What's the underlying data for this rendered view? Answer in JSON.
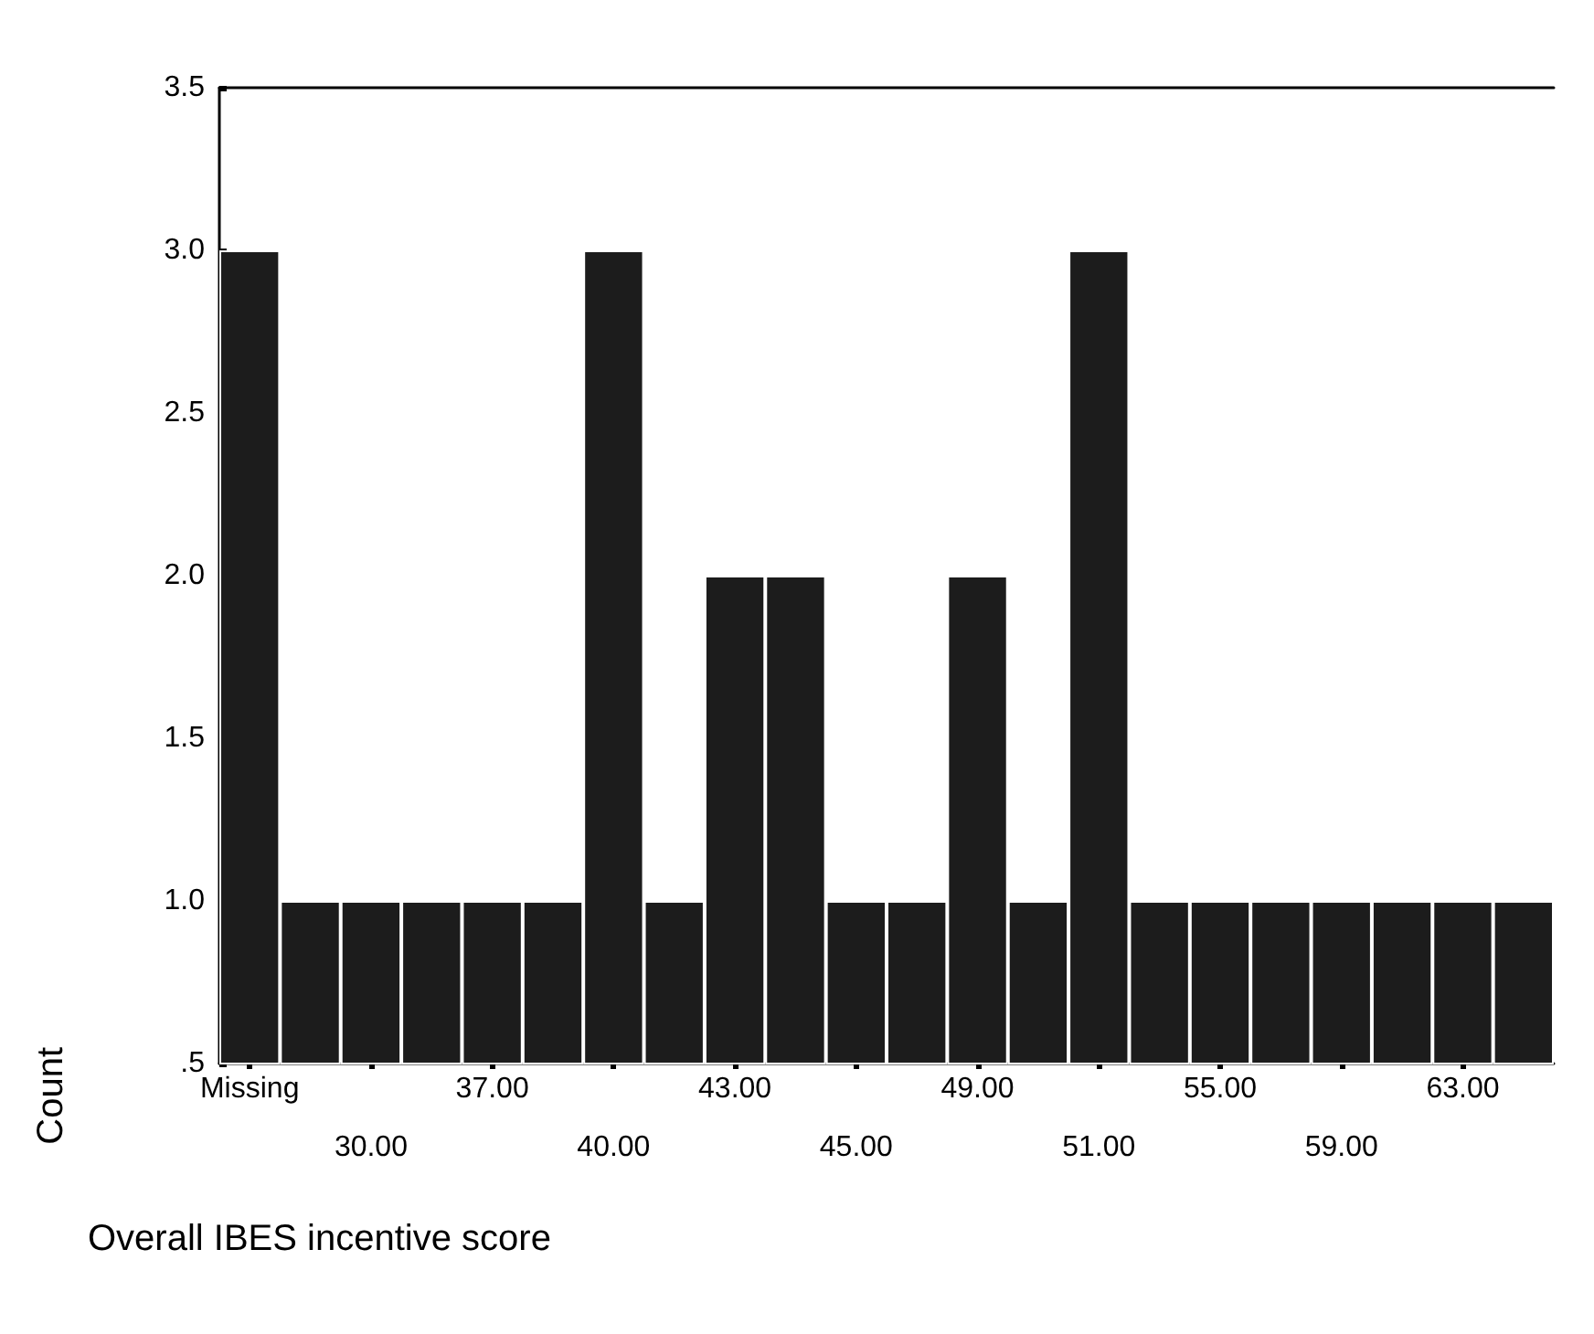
{
  "chart_data": {
    "type": "bar",
    "xlabel": "Overall IBES incentive score",
    "ylabel": "Count",
    "categories": [
      "Missing",
      null,
      "30.00",
      null,
      "37.00",
      null,
      "40.00",
      null,
      "43.00",
      null,
      "45.00",
      null,
      "49.00",
      null,
      "51.00",
      null,
      "55.00",
      null,
      "59.00",
      null,
      "63.00",
      null
    ],
    "values": [
      3,
      1,
      1,
      1,
      1,
      1,
      3,
      1,
      2,
      2,
      1,
      1,
      2,
      1,
      3,
      1,
      1,
      1,
      1,
      1,
      1,
      1
    ],
    "color": "#1c1c1c",
    "ylim": [
      0.5,
      3.5
    ],
    "yticks": [
      {
        "value": 0.5,
        "label": ".5"
      },
      {
        "value": 1,
        "label": "1.0"
      },
      {
        "value": 1.5,
        "label": "1.5"
      },
      {
        "value": 2,
        "label": "2.0"
      },
      {
        "value": 2.5,
        "label": "2.5"
      },
      {
        "value": 3,
        "label": "3.0"
      },
      {
        "value": 3.5,
        "label": "3.5"
      }
    ],
    "data_labels": false
  }
}
